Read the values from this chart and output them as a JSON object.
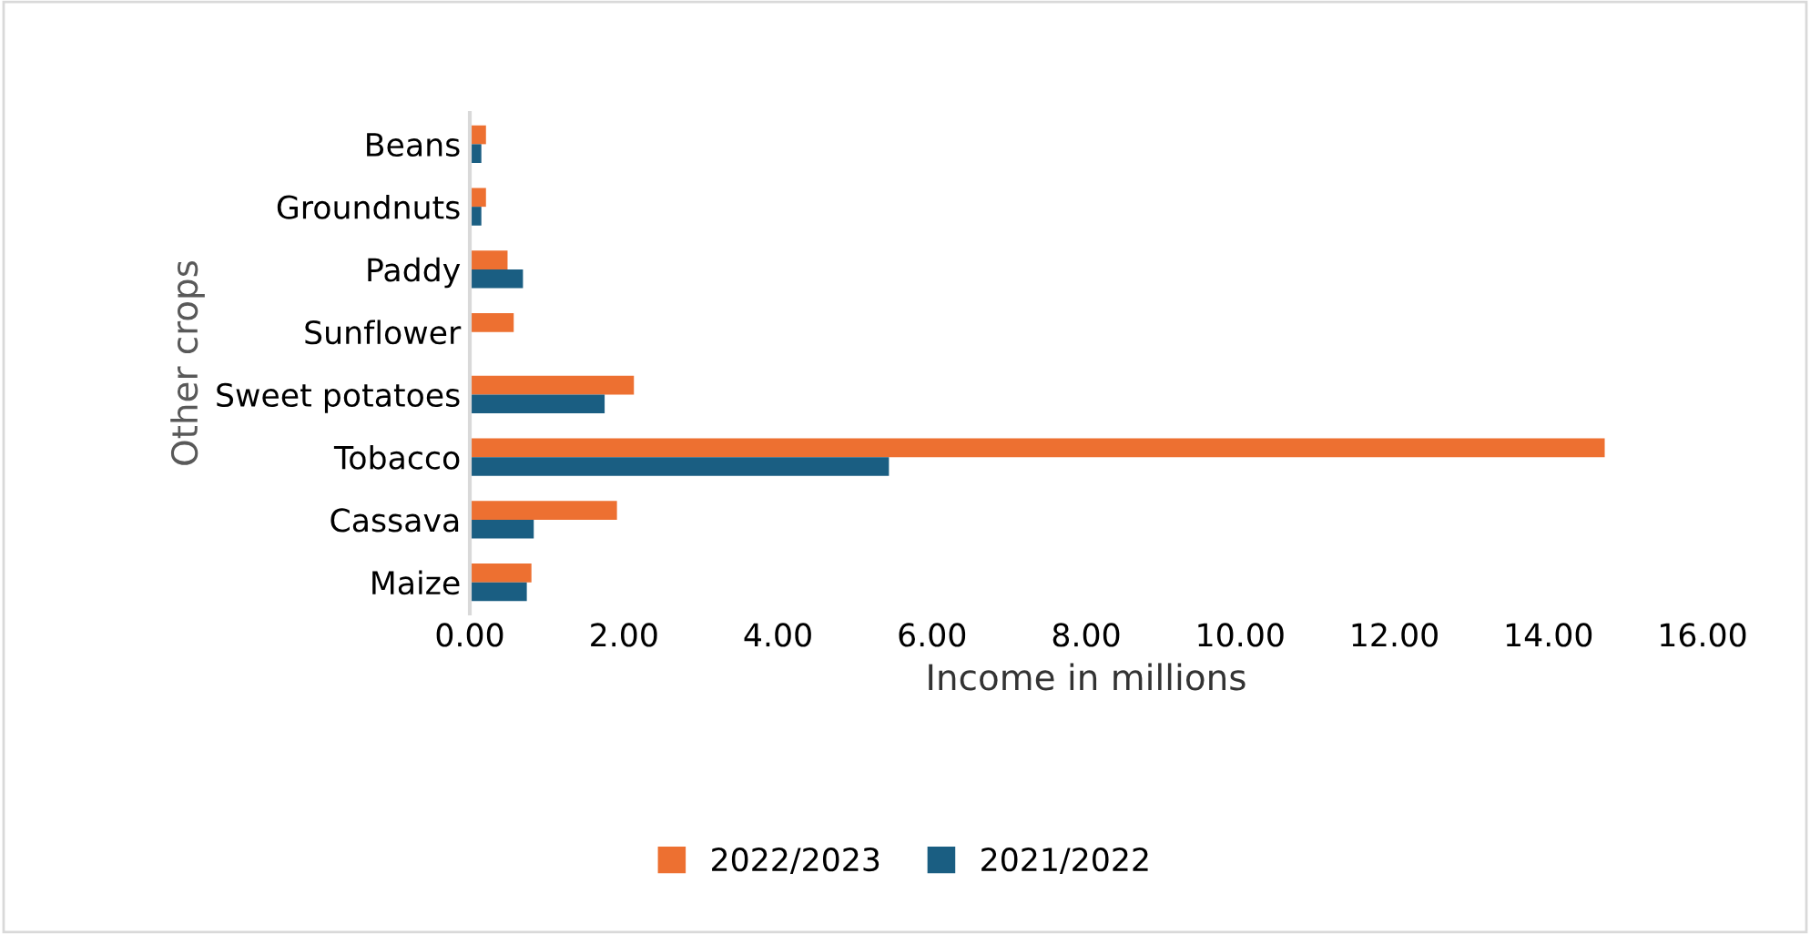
{
  "chart_data": {
    "type": "bar",
    "orientation": "horizontal",
    "xlabel": "Income in millions",
    "ylabel": "Other crops",
    "categories": [
      "Beans",
      "Groundnuts",
      "Paddy",
      "Sunflower",
      "Sweet potatoes",
      "Tobacco",
      "Cassava",
      "Maize"
    ],
    "series": [
      {
        "name": "2022/2023",
        "color": "#ed7031",
        "values": [
          0.21,
          0.21,
          0.49,
          0.57,
          2.13,
          14.73,
          1.91,
          0.8
        ]
      },
      {
        "name": "2021/2022",
        "color": "#1a5e82",
        "values": [
          0.15,
          0.15,
          0.69,
          null,
          1.75,
          5.44,
          0.83,
          0.74
        ]
      }
    ],
    "xlim": [
      0,
      16
    ],
    "xticks": [
      {
        "value": 0,
        "label": "0.00"
      },
      {
        "value": 2,
        "label": "2.00"
      },
      {
        "value": 4,
        "label": "4.00"
      },
      {
        "value": 6,
        "label": "6.00"
      },
      {
        "value": 8,
        "label": "8.00"
      },
      {
        "value": 10,
        "label": "10.00"
      },
      {
        "value": 12,
        "label": "12.00"
      },
      {
        "value": 14,
        "label": "14.00"
      },
      {
        "value": 16,
        "label": "16.00"
      }
    ],
    "grid": false,
    "legend": "bottom"
  }
}
